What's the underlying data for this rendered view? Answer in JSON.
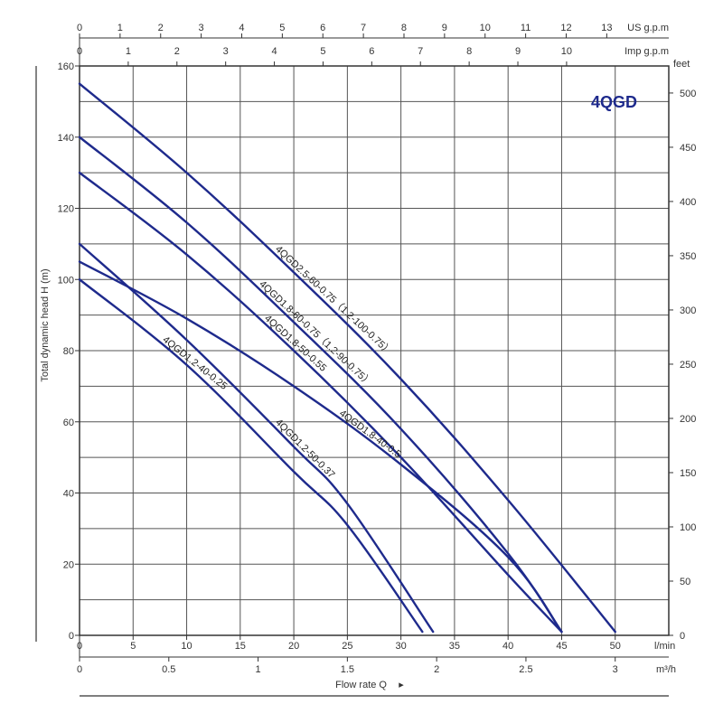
{
  "chart_data": {
    "type": "line",
    "title": "4QGD",
    "colors": {
      "curve": "#1e2a8c",
      "grid": "#555555",
      "frame": "#333333"
    },
    "xlabel": "Flow rate Q",
    "ylabel": "Total dynamic head H (m)",
    "x_unit": "l/min",
    "xlim": [
      0,
      55
    ],
    "ylim": [
      0,
      160
    ],
    "grid": true,
    "x_ticks": [
      0,
      5,
      10,
      15,
      20,
      25,
      30,
      35,
      40,
      45,
      50
    ],
    "y_ticks": [
      0,
      20,
      40,
      60,
      80,
      100,
      120,
      140,
      160
    ],
    "axis_m3h": {
      "unit": "m³/h",
      "ticks": [
        0,
        0.5,
        1,
        1.5,
        2,
        2.5,
        3
      ]
    },
    "axis_feet": {
      "unit": "feet",
      "ticks": [
        0,
        50,
        100,
        150,
        200,
        250,
        300,
        350,
        400,
        450,
        500
      ]
    },
    "axis_usgpm": {
      "unit": "US g.p.m",
      "ticks": [
        0,
        1,
        2,
        3,
        4,
        5,
        6,
        7,
        8,
        9,
        10,
        11,
        12,
        13
      ]
    },
    "axis_impgpm": {
      "unit": "Imp g.p.m",
      "ticks": [
        0,
        1,
        2,
        3,
        4,
        5,
        6,
        7,
        8,
        9,
        10
      ]
    },
    "series": [
      {
        "name": "4QGD2.5-60-0.75（1.2-100-0.75）",
        "x": [
          0,
          10,
          20,
          30,
          40,
          50
        ],
        "y": [
          155,
          130,
          102,
          72,
          38,
          1
        ]
      },
      {
        "name": "4QGD1.8-60-0.75（1.2-90-0.75）",
        "x": [
          0,
          10,
          20,
          30,
          40,
          45
        ],
        "y": [
          140,
          116,
          88,
          58,
          23,
          1
        ]
      },
      {
        "name": "4QGD1.8-50-0.55",
        "x": [
          0,
          10,
          20,
          30,
          40,
          45
        ],
        "y": [
          130,
          107,
          80,
          50,
          17,
          1
        ]
      },
      {
        "name": "4QGD1.8-40-0.5",
        "x": [
          0,
          10,
          20,
          30,
          40,
          45
        ],
        "y": [
          105,
          89,
          70,
          48,
          22,
          1
        ]
      },
      {
        "name": "4QGD1.2-50-0.37",
        "x": [
          0,
          10,
          20,
          25,
          33
        ],
        "y": [
          110,
          83,
          53,
          37,
          1
        ]
      },
      {
        "name": "4QGD1.2-40-0.25",
        "x": [
          0,
          10,
          20,
          25,
          32
        ],
        "y": [
          100,
          76,
          46,
          31,
          1
        ]
      }
    ]
  }
}
